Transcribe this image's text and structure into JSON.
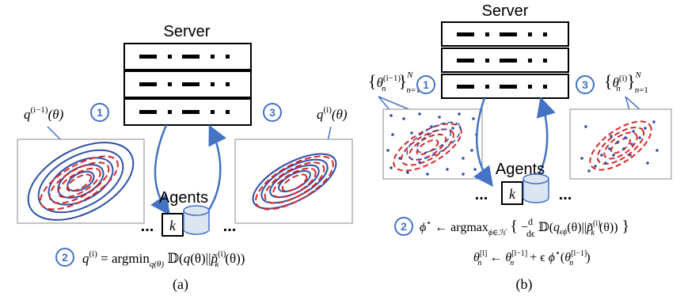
{
  "panel_a": {
    "server_label": "Server",
    "agents_label": "Agents",
    "agent_box_label": "k",
    "ellipsis_left": "...",
    "ellipsis_right": "...",
    "step1": "1",
    "step2": "2",
    "step3": "3",
    "q_prev_label": "q^(i−1)(θ)",
    "q_new_label": "q^(i)(θ)",
    "equation": "q^(i) = argmin_q(θ) 𝔻(q(θ)||p̃_k^(i)(θ))",
    "caption": "(a)"
  },
  "panel_b": {
    "server_label": "Server",
    "agents_label": "Agents",
    "agent_box_label": "k",
    "ellipsis_left": "...",
    "ellipsis_right": "...",
    "step1": "1",
    "step2": "2",
    "step3": "3",
    "theta_prev_set": "{θ_n^(i−1)}_{n=1}^N",
    "theta_new_set": "{θ_n^(i)}_{n=1}^N",
    "equation1": "ϕ* ← argmax_ϕ∈ℋ {−d/dϵ 𝔻(q_ϵϕ(θ)||p̃_k^(i)(θ))}",
    "equation2": "θ_n^[l] ← θ_n^[l−1] + ϵ ϕ*(θ_n^[l−1])",
    "caption": "(b)"
  },
  "colors": {
    "accent_blue": "#4472C4",
    "contour_blue": "#2E4FA8",
    "contour_red": "#D62728",
    "server_fill": "#ffffff",
    "stroke": "#000000",
    "cylinder_fill": "#DCE6F2"
  }
}
